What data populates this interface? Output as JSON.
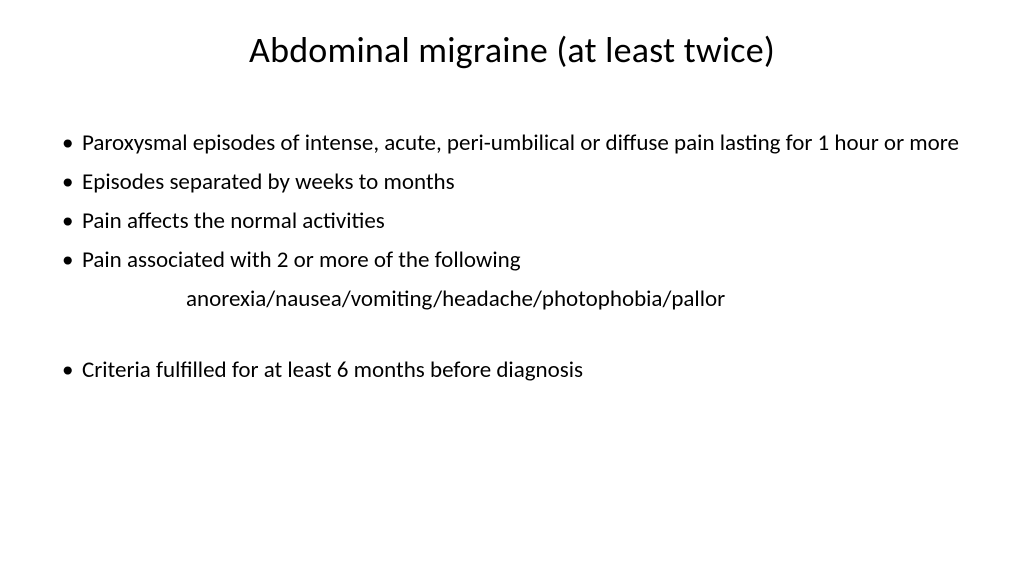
{
  "slide": {
    "title": "Abdominal migraine (at least twice)",
    "bullets": [
      "Paroxysmal episodes of intense, acute, peri-umbilical or diffuse pain lasting for 1 hour or more",
      "Episodes separated by weeks to months",
      "Pain affects the normal activities",
      "Pain associated with 2 or more of the following"
    ],
    "sub_line": "anorexia/nausea/vomiting/headache/photophobia/pallor",
    "final_bullet": "Criteria fulfilled for at least 6 months before diagnosis",
    "background_color": "#ffffff",
    "text_color": "#000000",
    "title_fontsize": 36,
    "body_fontsize": 23
  }
}
